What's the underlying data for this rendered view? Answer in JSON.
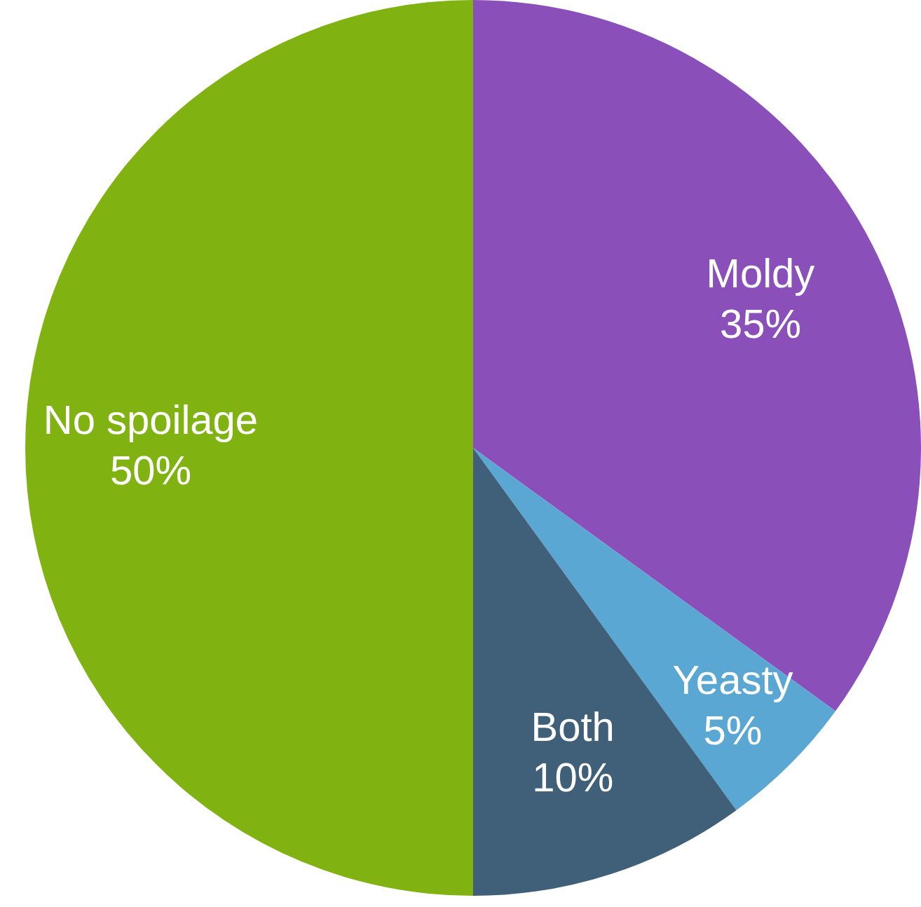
{
  "chart_data": {
    "type": "pie",
    "categories": [
      "Moldy",
      "Yeasty",
      "Both",
      "No spoilage"
    ],
    "values": [
      35,
      5,
      10,
      50
    ],
    "colors": [
      "#8a4fb8",
      "#5ba7d4",
      "#3f6078",
      "#80b312"
    ],
    "value_labels": [
      "35%",
      "5%",
      "10%",
      "50%"
    ]
  }
}
